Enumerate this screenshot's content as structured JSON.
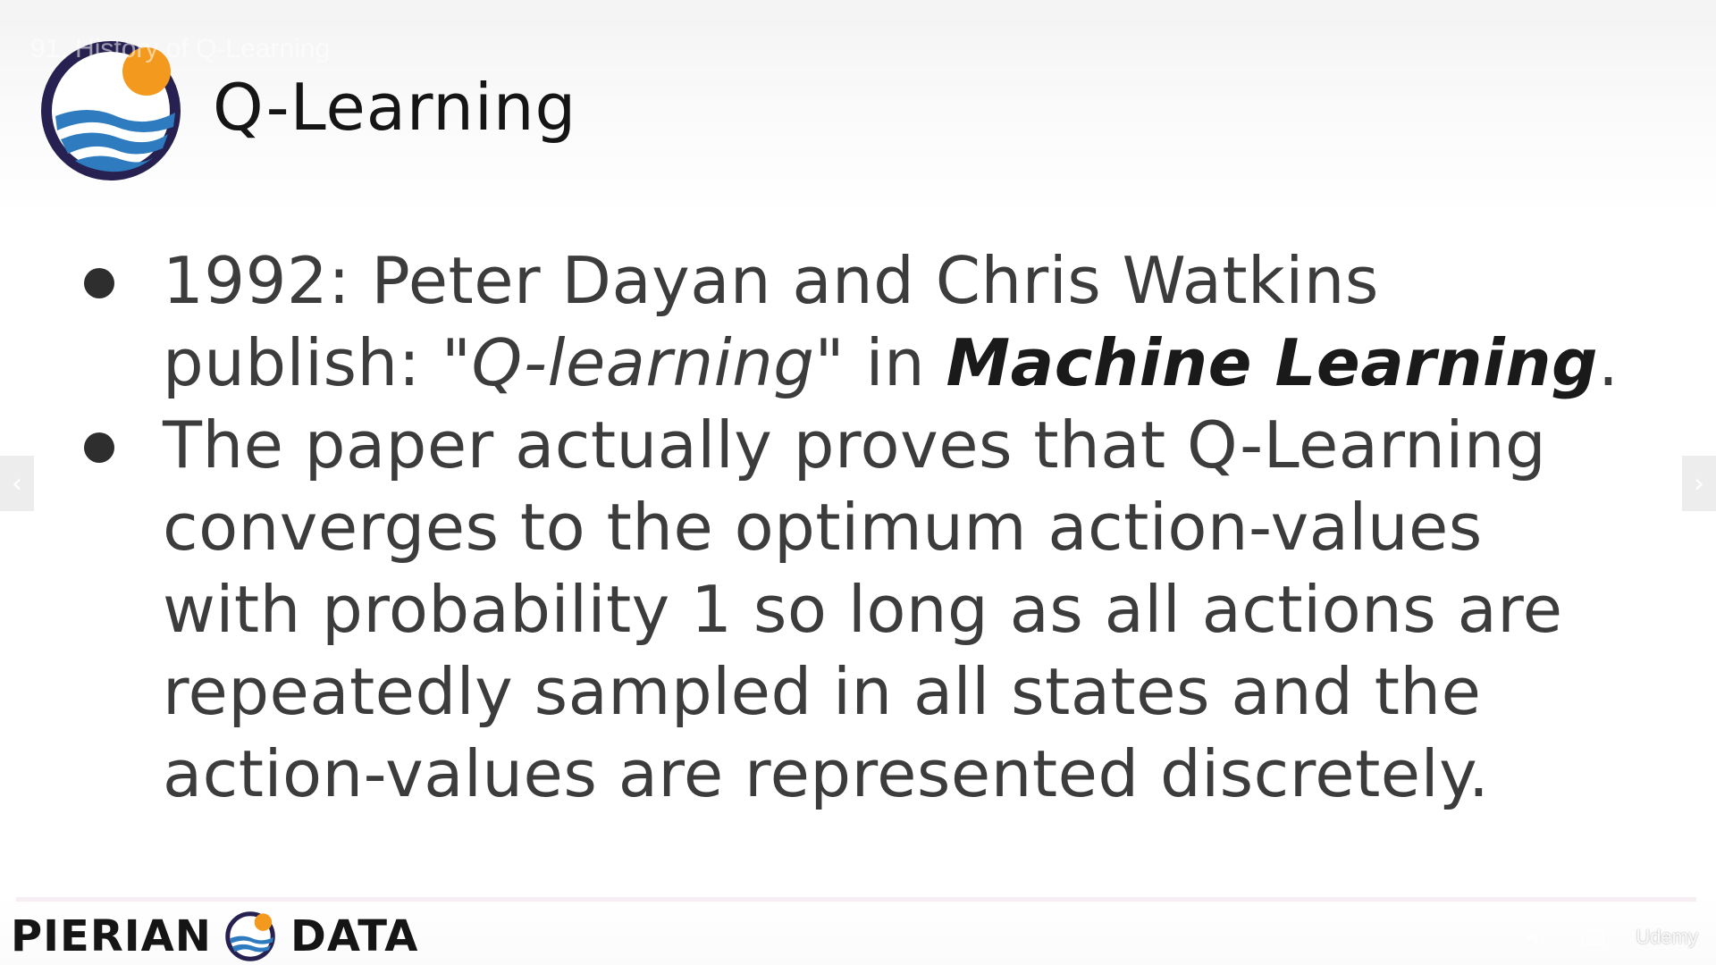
{
  "video": {
    "overlay_title": "91. History of Q-Learning"
  },
  "slide": {
    "title": "Q-Learning",
    "bullets": [
      {
        "line1": "1992: Peter Dayan and Chris Watkins",
        "line2_prefix": "publish: \"",
        "line2_italic": "Q-learning",
        "line2_middle": "\" in ",
        "line2_bold_italic": "Machine Learning",
        "line2_suffix": "."
      },
      {
        "lines": [
          "The paper actually proves that Q-Learning",
          "converges to the optimum action-values",
          "with probability 1 so long as all actions are",
          "repeatedly sampled in all states and the",
          "action-values are represented discretely."
        ]
      }
    ]
  },
  "footer": {
    "brand_left": "PIERIAN",
    "brand_right": "DATA",
    "watermark": "Udemy"
  },
  "navigation": {
    "prev_icon": "chevron-left-icon",
    "next_icon": "chevron-right-icon"
  },
  "colors": {
    "logo_ring": "#262150",
    "logo_sun": "#f39a1e",
    "logo_wave": "#2e7bbf",
    "title_text": "#151515",
    "body_text": "#3c3c3c"
  }
}
